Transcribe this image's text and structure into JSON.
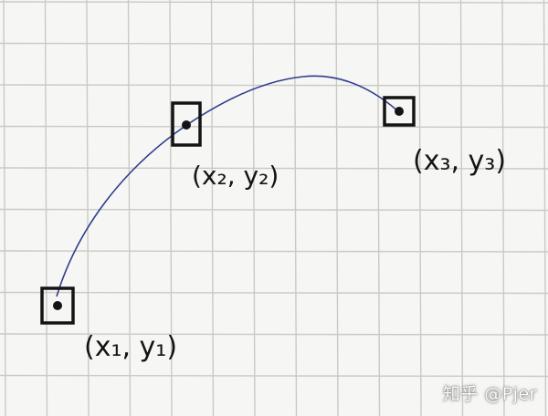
{
  "points": [
    {
      "label": "(x₁, y₁)"
    },
    {
      "label": "(x₂, y₂)"
    },
    {
      "label": "(x₃, y₃)"
    }
  ],
  "colors": {
    "paper": "#f6f6f4",
    "grid": "#c9c9c6",
    "ink": "#141414",
    "curve": "#2f3d8f"
  },
  "watermark": "知乎 @Pjer"
}
